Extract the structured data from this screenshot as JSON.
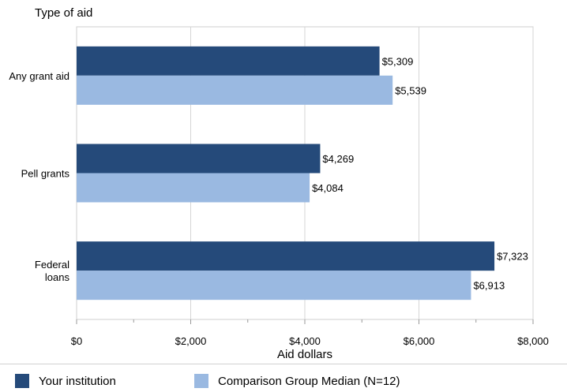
{
  "chart_data": {
    "type": "bar",
    "orientation": "horizontal",
    "title": "Type of aid",
    "xlabel": "Aid dollars",
    "ylabel": "",
    "xlim": [
      0,
      8000
    ],
    "xticks": [
      0,
      2000,
      4000,
      6000,
      8000
    ],
    "xtick_labels": [
      "$0",
      "$2,000",
      "$4,000",
      "$6,000",
      "$8,000"
    ],
    "categories": [
      "Any grant aid",
      "Pell grants",
      "Federal\nloans"
    ],
    "series": [
      {
        "name": "Your institution",
        "color": "#254a7a",
        "values": [
          5309,
          4269,
          7323
        ],
        "labels": [
          "$5,309",
          "$4,269",
          "$7,323"
        ]
      },
      {
        "name": "Comparison Group Median (N=12)",
        "color": "#9ab9e1",
        "values": [
          5539,
          4084,
          6913
        ],
        "labels": [
          "$5,539",
          "$4,084",
          "$6,913"
        ]
      }
    ],
    "grid": true,
    "legend_position": "bottom"
  }
}
